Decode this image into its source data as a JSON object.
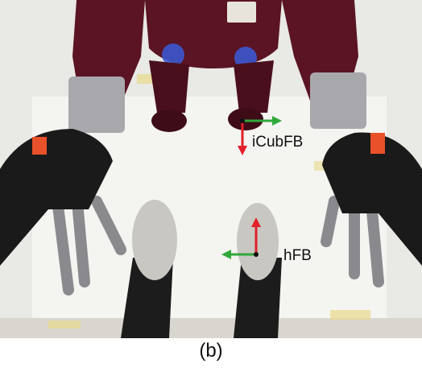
{
  "figure": {
    "caption": "(b)",
    "labels": {
      "icub_frame": "iCubFB",
      "human_frame": "hFB"
    },
    "colors": {
      "x_axis_arrow": "#2fa83a",
      "y_axis_arrow": "#e0202a",
      "robot_body": "#5a1423",
      "floor": "#ecece8",
      "glove": "#1a1a1a",
      "glove_accent": "#e8512a"
    }
  }
}
